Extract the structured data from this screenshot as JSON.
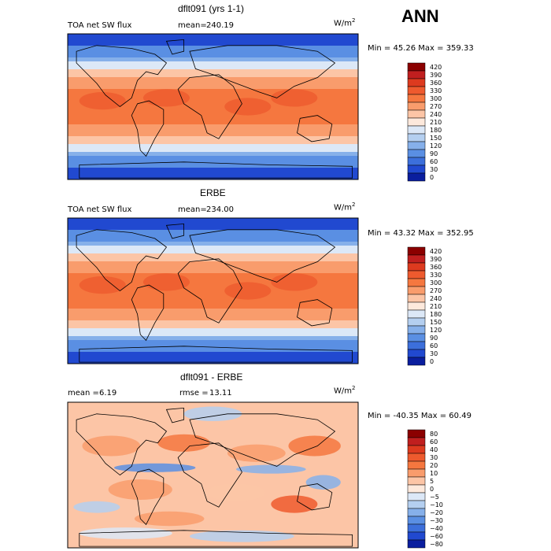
{
  "header": {
    "season": "ANN"
  },
  "panels": [
    {
      "title": "dflt091 (yrs 1-1)",
      "field": "TOA net SW flux",
      "mean_label": "mean=",
      "mean_value": "240.19",
      "unit": "W/m",
      "unit_exp": "2",
      "minmax": "Min =  45.26 Max = 359.33"
    },
    {
      "title": "ERBE",
      "field": "TOA net SW flux",
      "mean_label": "mean=",
      "mean_value": "234.00",
      "unit": "W/m",
      "unit_exp": "2",
      "minmax": "Min =  43.32 Max = 352.95"
    },
    {
      "title": "dflt091 - ERBE",
      "field": "mean =",
      "mean_value": "6.19",
      "rmse_label": "rmse =",
      "rmse_value": "13.11",
      "unit": "W/m",
      "unit_exp": "2",
      "minmax": "Min = -40.35 Max =  60.49"
    }
  ],
  "chart_data": [
    {
      "type": "heatmap",
      "title": "dflt091 (yrs 1-1)",
      "variable": "TOA net SW flux",
      "units": "W/m2",
      "mean": 240.19,
      "min": 45.26,
      "max": 359.33,
      "colorbar": {
        "levels": [
          420,
          390,
          360,
          330,
          300,
          270,
          240,
          210,
          180,
          150,
          120,
          90,
          60,
          30,
          0
        ],
        "colors": [
          "#8b0000",
          "#c01f1f",
          "#dd3a1f",
          "#ee5a2e",
          "#f5773f",
          "#f99c6c",
          "#fcc5a6",
          "#fde9dc",
          "#dce8f7",
          "#b4cff0",
          "#86b0ea",
          "#5a8fe3",
          "#3c6fdb",
          "#2149d0",
          "#0a1e9e"
        ]
      }
    },
    {
      "type": "heatmap",
      "title": "ERBE",
      "variable": "TOA net SW flux",
      "units": "W/m2",
      "mean": 234.0,
      "min": 43.32,
      "max": 352.95,
      "colorbar": {
        "levels": [
          420,
          390,
          360,
          330,
          300,
          270,
          240,
          210,
          180,
          150,
          120,
          90,
          60,
          30,
          0
        ],
        "colors": [
          "#8b0000",
          "#c01f1f",
          "#dd3a1f",
          "#ee5a2e",
          "#f5773f",
          "#f99c6c",
          "#fcc5a6",
          "#fde9dc",
          "#dce8f7",
          "#b4cff0",
          "#86b0ea",
          "#5a8fe3",
          "#3c6fdb",
          "#2149d0",
          "#0a1e9e"
        ]
      }
    },
    {
      "type": "heatmap",
      "title": "dflt091 - ERBE",
      "units": "W/m2",
      "mean": 6.19,
      "rmse": 13.11,
      "min": -40.35,
      "max": 60.49,
      "colorbar": {
        "levels": [
          80,
          60,
          40,
          30,
          20,
          10,
          5,
          0,
          -5,
          -10,
          -20,
          -30,
          -40,
          -60,
          -80
        ],
        "colors": [
          "#8b0000",
          "#c01f1f",
          "#dd3a1f",
          "#ee5a2e",
          "#f5773f",
          "#f99c6c",
          "#fcc5a6",
          "#fde9dc",
          "#dce8f7",
          "#b4cff0",
          "#86b0ea",
          "#5a8fe3",
          "#3c6fdb",
          "#2149d0",
          "#0a1e9e"
        ]
      }
    }
  ]
}
